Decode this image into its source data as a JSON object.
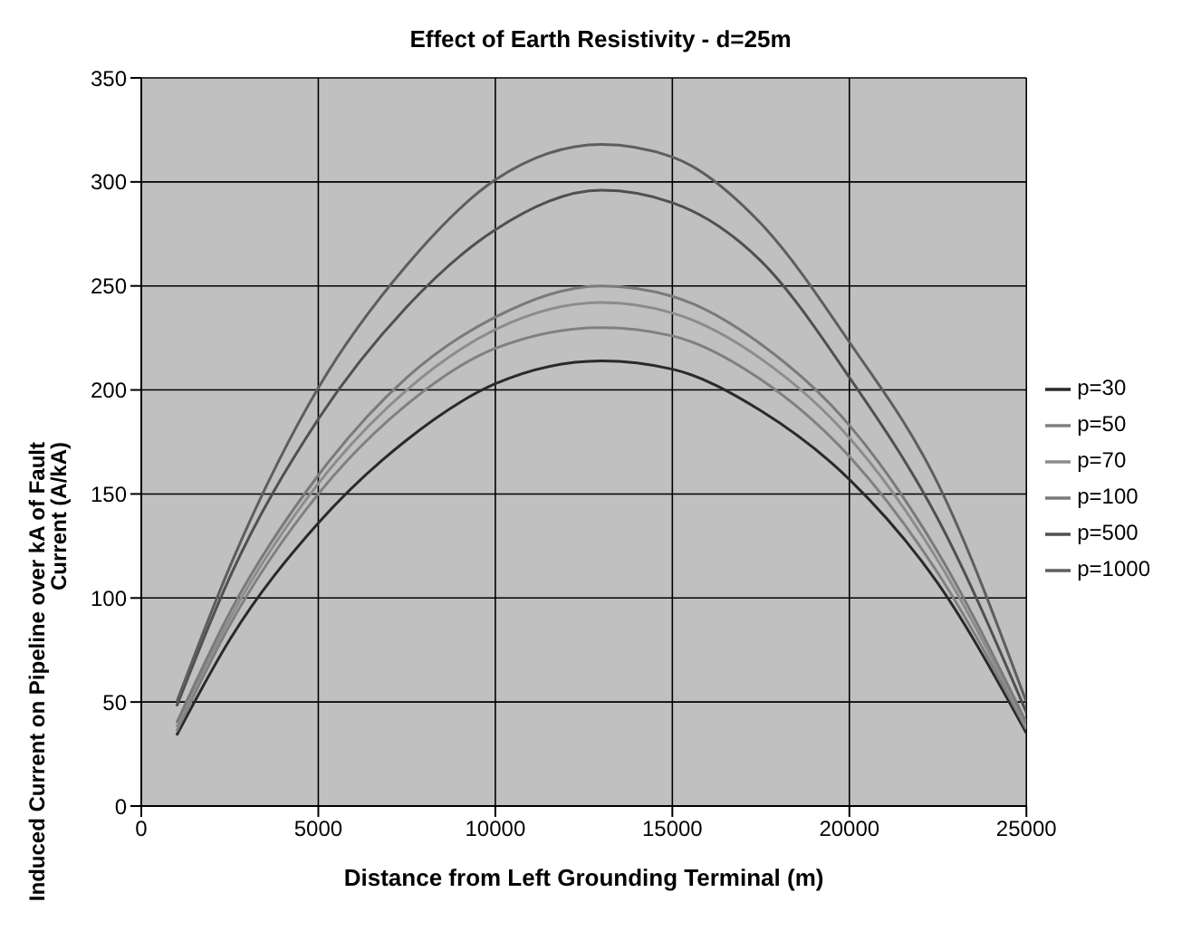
{
  "chart_data": {
    "type": "line",
    "title": "Effect of Earth Resistivity - d=25m",
    "xlabel": "Distance from Left Grounding Terminal (m)",
    "ylabel": "Induced Current on Pipeline over kA of Fault Current (A/kA)",
    "x": [
      1000,
      2500,
      5000,
      7500,
      10000,
      13000,
      15000,
      17500,
      20000,
      22500,
      25000
    ],
    "series": [
      {
        "name": "p=30",
        "color": "#2a2a2a",
        "values": [
          34,
          80,
          136,
          176,
          203,
          214,
          210,
          190,
          157,
          107,
          35
        ]
      },
      {
        "name": "p=50",
        "color": "#808080",
        "values": [
          36,
          87,
          150,
          193,
          220,
          230,
          226,
          205,
          168,
          112,
          37
        ]
      },
      {
        "name": "p=70",
        "color": "#8c8c8c",
        "values": [
          38,
          90,
          155,
          200,
          229,
          242,
          237,
          215,
          177,
          118,
          38
        ]
      },
      {
        "name": "p=100",
        "color": "#7a7a7a",
        "values": [
          40,
          93,
          159,
          206,
          235,
          250,
          245,
          222,
          183,
          122,
          40
        ]
      },
      {
        "name": "p=500",
        "color": "#505050",
        "values": [
          48,
          110,
          186,
          240,
          277,
          296,
          290,
          262,
          206,
          138,
          45
        ]
      },
      {
        "name": "p=1000",
        "color": "#5e5e5e",
        "values": [
          50,
          115,
          201,
          260,
          301,
          318,
          312,
          280,
          223,
          155,
          50
        ]
      }
    ],
    "xlim": [
      0,
      25000
    ],
    "xticks": [
      0,
      5000,
      10000,
      15000,
      20000,
      25000
    ],
    "ylim": [
      0,
      350
    ],
    "yticks": [
      0,
      50,
      100,
      150,
      200,
      250,
      300,
      350
    ],
    "grid": true,
    "legend": "right",
    "marker": "none",
    "line_style": "solid"
  }
}
